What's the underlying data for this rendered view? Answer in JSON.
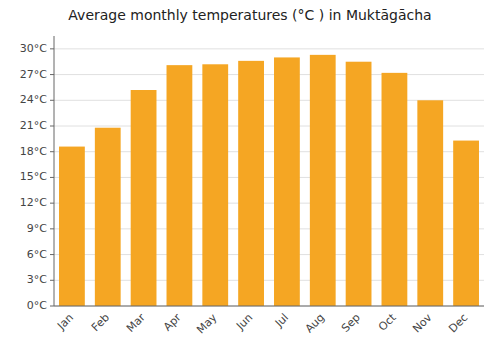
{
  "chart_data": {
    "type": "bar",
    "title": "Average monthly temperatures (°C ) in Muktāgācha",
    "categories": [
      "Jan",
      "Feb",
      "Mar",
      "Apr",
      "May",
      "Jun",
      "Jul",
      "Aug",
      "Sep",
      "Oct",
      "Nov",
      "Dec"
    ],
    "values": [
      18.6,
      20.8,
      25.2,
      28.1,
      28.2,
      28.6,
      29.0,
      29.3,
      28.5,
      27.2,
      24.0,
      19.3
    ],
    "color": "#F5A623",
    "ylim": [
      0,
      31.5
    ],
    "yticks": [
      {
        "value": 0,
        "label": "0°C"
      },
      {
        "value": 3,
        "label": "3°C"
      },
      {
        "value": 6,
        "label": "6°C"
      },
      {
        "value": 9,
        "label": "9°C"
      },
      {
        "value": 12,
        "label": "12°C"
      },
      {
        "value": 15,
        "label": "15°C"
      },
      {
        "value": 18,
        "label": "18°C"
      },
      {
        "value": 21,
        "label": "21°C"
      },
      {
        "value": 24,
        "label": "24°C"
      },
      {
        "value": 27,
        "label": "27°C"
      },
      {
        "value": 30,
        "label": "30°C"
      }
    ],
    "grid": true
  }
}
